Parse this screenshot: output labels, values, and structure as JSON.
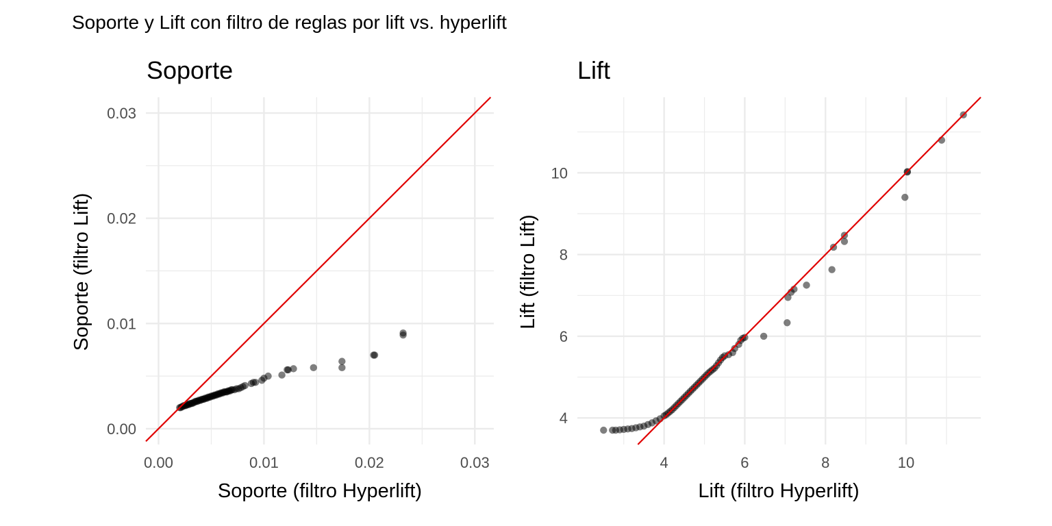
{
  "figure": {
    "title": "Soporte y Lift con filtro de reglas por lift vs. hyperlift"
  },
  "chart_data": [
    {
      "type": "scatter",
      "title": "Soporte",
      "xlabel": "Soporte  (filtro Hyperlift)",
      "ylabel": "Soporte (filtro Lift)",
      "xlim": [
        -0.0012,
        0.0318
      ],
      "ylim": [
        -0.0015,
        0.0315
      ],
      "xticks": [
        "0.00",
        "0.01",
        "0.02",
        "0.03"
      ],
      "xtick_values": [
        0,
        0.01,
        0.02,
        0.03
      ],
      "yticks": [
        "0.00",
        "0.01",
        "0.02",
        "0.03"
      ],
      "ytick_values": [
        0,
        0.01,
        0.02,
        0.03
      ],
      "grid": true,
      "reference_line": "y = x",
      "reference_color": "#e00000",
      "point_color": "#000000",
      "x": [
        0.002,
        0.0021,
        0.0022,
        0.0023,
        0.0024,
        0.0025,
        0.0026,
        0.0027,
        0.0028,
        0.0029,
        0.003,
        0.0031,
        0.0032,
        0.0033,
        0.0034,
        0.0035,
        0.0036,
        0.0037,
        0.0038,
        0.0039,
        0.004,
        0.0041,
        0.0042,
        0.0043,
        0.0044,
        0.0045,
        0.0046,
        0.0047,
        0.0048,
        0.0049,
        0.005,
        0.0051,
        0.0052,
        0.0053,
        0.0054,
        0.0055,
        0.0056,
        0.0057,
        0.0058,
        0.0059,
        0.006,
        0.0061,
        0.0062,
        0.0063,
        0.0064,
        0.0065,
        0.0066,
        0.0067,
        0.0068,
        0.0069,
        0.007,
        0.0072,
        0.0074,
        0.0076,
        0.0078,
        0.008,
        0.0082,
        0.0088,
        0.009,
        0.0092,
        0.0098,
        0.01,
        0.0104,
        0.0117,
        0.0122,
        0.0123,
        0.0128,
        0.0147,
        0.0174,
        0.0174,
        0.0204,
        0.0205,
        0.0232,
        0.0232
      ],
      "y": [
        0.002,
        0.002,
        0.0021,
        0.0021,
        0.0022,
        0.0022,
        0.0022,
        0.0023,
        0.0023,
        0.0023,
        0.0024,
        0.0024,
        0.0024,
        0.0025,
        0.0025,
        0.0026,
        0.0026,
        0.0026,
        0.0027,
        0.0027,
        0.0027,
        0.0028,
        0.0028,
        0.0028,
        0.0029,
        0.0029,
        0.0029,
        0.003,
        0.003,
        0.003,
        0.0031,
        0.0031,
        0.0031,
        0.0032,
        0.0032,
        0.0032,
        0.0033,
        0.0033,
        0.0033,
        0.0034,
        0.0034,
        0.0034,
        0.0035,
        0.0035,
        0.0035,
        0.0035,
        0.0036,
        0.0036,
        0.0036,
        0.0037,
        0.0037,
        0.0037,
        0.0038,
        0.0038,
        0.0039,
        0.004,
        0.0041,
        0.0043,
        0.0044,
        0.0044,
        0.0046,
        0.0048,
        0.005,
        0.0051,
        0.0056,
        0.0056,
        0.0057,
        0.0058,
        0.0058,
        0.0064,
        0.007,
        0.007,
        0.0089,
        0.0091
      ]
    },
    {
      "type": "scatter",
      "title": "Lift",
      "xlabel": "Lift (filtro Hyperlift)",
      "ylabel": "Lift (filtro Lift)",
      "xlim": [
        1.85,
        11.85
      ],
      "ylim": [
        3.35,
        11.85
      ],
      "xticks": [
        "4",
        "6",
        "8",
        "10"
      ],
      "xtick_values": [
        4,
        6,
        8,
        10
      ],
      "yticks": [
        "4",
        "6",
        "8",
        "10"
      ],
      "ytick_values": [
        4,
        6,
        8,
        10
      ],
      "grid": true,
      "reference_line": "y = x",
      "reference_color": "#e00000",
      "point_color": "#000000",
      "x": [
        2.5,
        2.72,
        2.8,
        2.9,
        3.0,
        3.1,
        3.2,
        3.3,
        3.4,
        3.5,
        3.6,
        3.7,
        3.8,
        3.9,
        4.0,
        4.05,
        4.1,
        4.15,
        4.2,
        4.25,
        4.3,
        4.35,
        4.4,
        4.45,
        4.5,
        4.55,
        4.6,
        4.65,
        4.7,
        4.75,
        4.8,
        4.85,
        4.9,
        4.95,
        5.0,
        5.05,
        5.1,
        5.15,
        5.2,
        5.25,
        5.3,
        5.35,
        5.4,
        5.45,
        5.5,
        5.6,
        5.7,
        5.75,
        5.85,
        5.9,
        5.95,
        6.0,
        6.47,
        7.05,
        7.07,
        7.15,
        7.22,
        7.53,
        8.16,
        8.2,
        8.47,
        8.47,
        9.97,
        10.03,
        10.03,
        10.88,
        11.42
      ],
      "y": [
        3.7,
        3.7,
        3.7,
        3.71,
        3.72,
        3.73,
        3.74,
        3.76,
        3.78,
        3.8,
        3.84,
        3.88,
        3.93,
        3.98,
        4.05,
        4.08,
        4.12,
        4.16,
        4.2,
        4.25,
        4.3,
        4.35,
        4.4,
        4.45,
        4.5,
        4.55,
        4.6,
        4.65,
        4.7,
        4.75,
        4.8,
        4.85,
        4.9,
        4.95,
        5.0,
        5.05,
        5.1,
        5.14,
        5.18,
        5.22,
        5.28,
        5.35,
        5.42,
        5.48,
        5.52,
        5.55,
        5.6,
        5.7,
        5.8,
        5.9,
        5.95,
        5.97,
        6.0,
        6.33,
        6.95,
        7.08,
        7.15,
        7.25,
        7.63,
        8.18,
        8.32,
        8.47,
        9.4,
        10.02,
        10.03,
        10.8,
        11.42
      ]
    }
  ]
}
